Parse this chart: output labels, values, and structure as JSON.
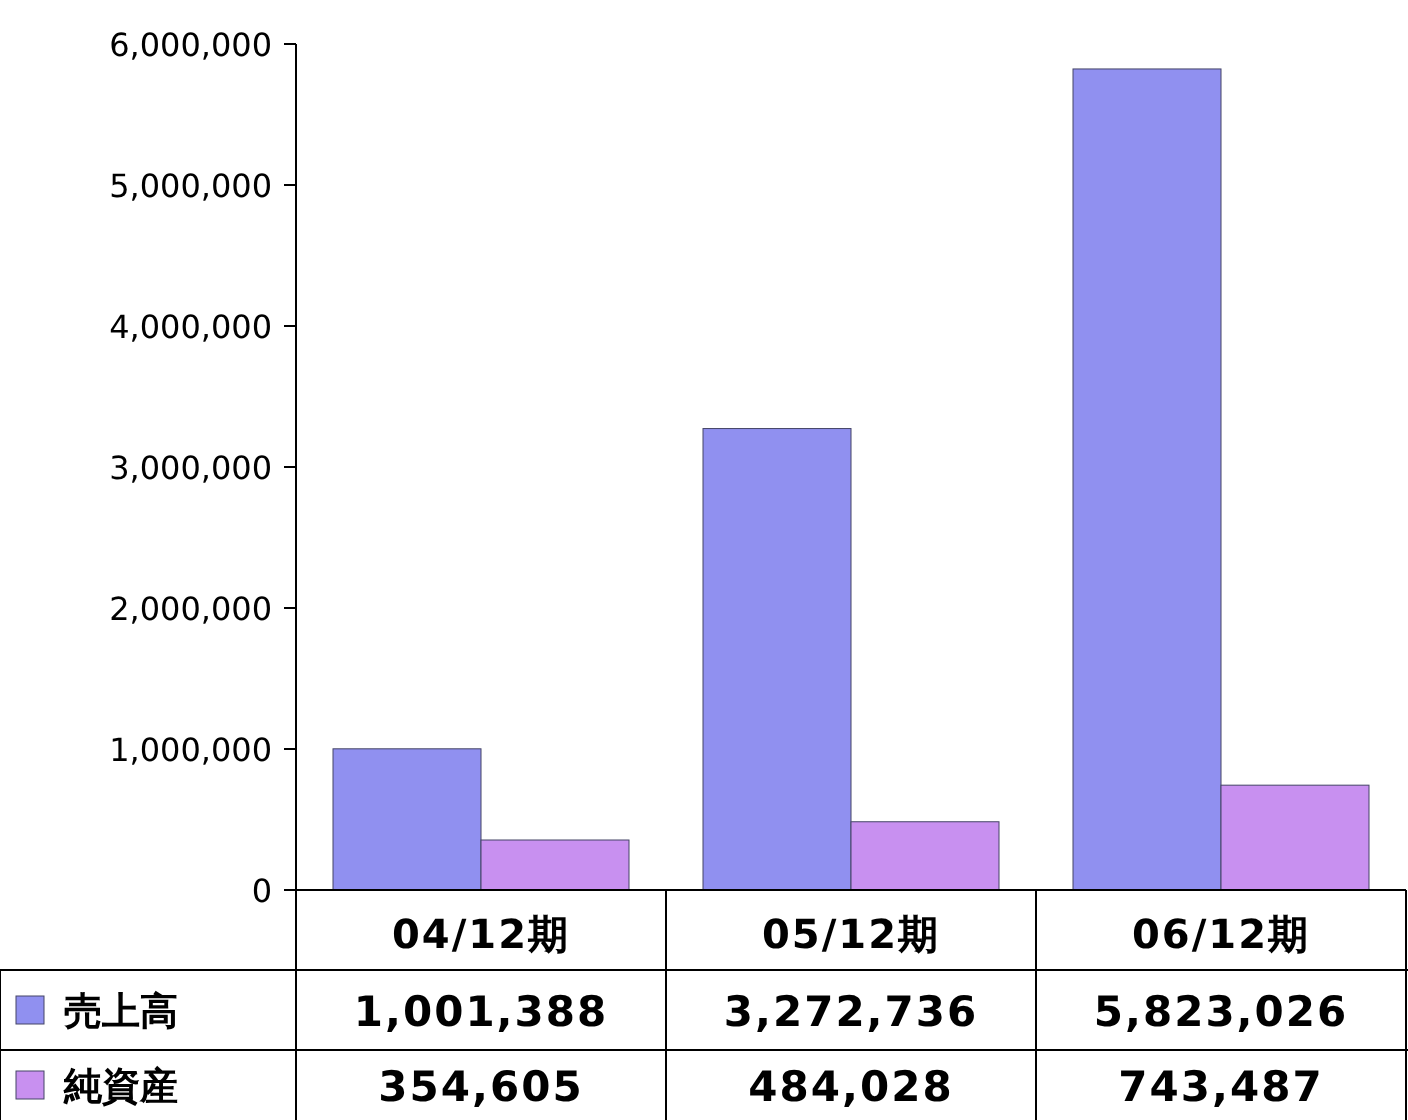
{
  "chart_data": {
    "type": "bar",
    "categories": [
      "04/12期",
      "05/12期",
      "06/12期"
    ],
    "series": [
      {
        "name": "売上高",
        "color": "#9090f0",
        "values": [
          1001388,
          3272736,
          5823026
        ],
        "value_labels": [
          "1,001,388",
          "3,272,736",
          "5,823,026"
        ]
      },
      {
        "name": "純資産",
        "color": "#c890f0",
        "values": [
          354605,
          484028,
          743487
        ],
        "value_labels": [
          "354,605",
          "484,028",
          "743,487"
        ]
      }
    ],
    "ylim": [
      0,
      6000000
    ],
    "yticks": [
      {
        "value": 0,
        "label": "0"
      },
      {
        "value": 1000000,
        "label": "1,000,000"
      },
      {
        "value": 2000000,
        "label": "2,000,000"
      },
      {
        "value": 3000000,
        "label": "3,000,000"
      },
      {
        "value": 4000000,
        "label": "4,000,000"
      },
      {
        "value": 5000000,
        "label": "5,000,000"
      },
      {
        "value": 6000000,
        "label": "6,000,000"
      }
    ],
    "grid": false,
    "legend": "bottom"
  }
}
